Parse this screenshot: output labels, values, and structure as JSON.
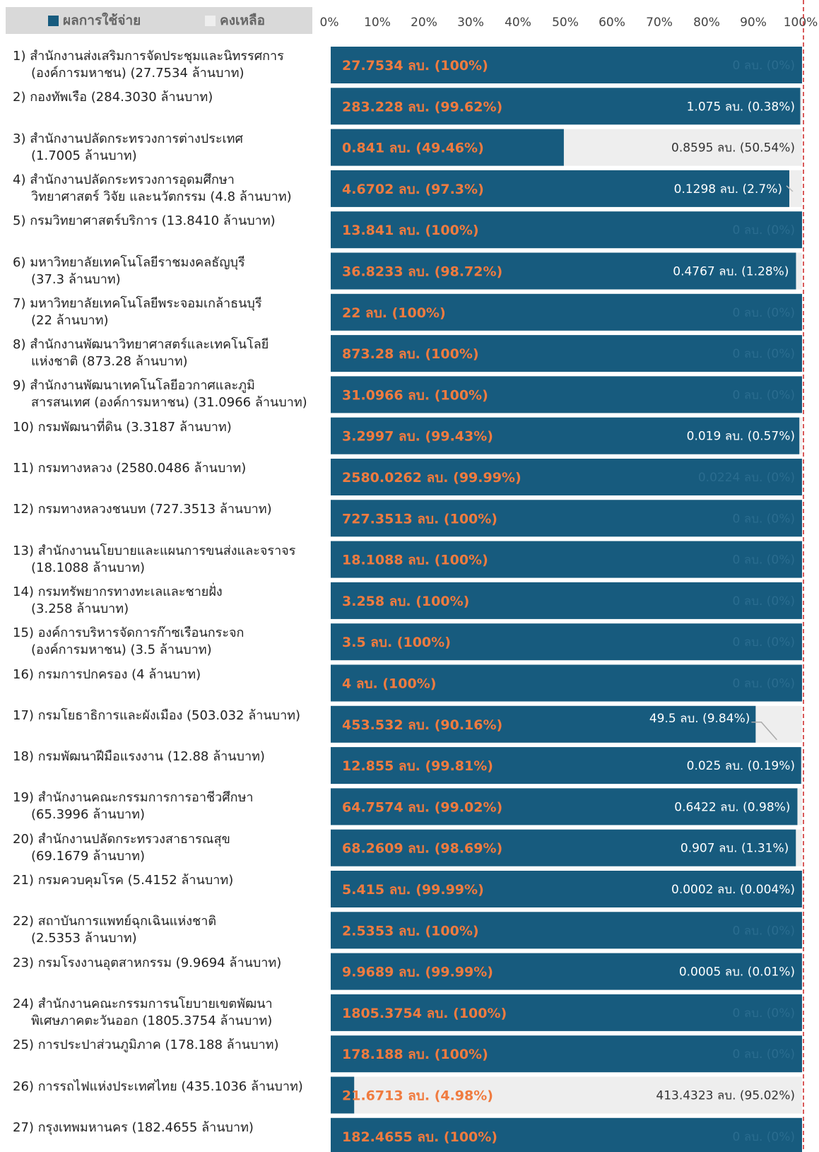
{
  "legend": {
    "spent_label": "ผลการใช้จ่าย",
    "remaining_label": "คงเหลือ",
    "position": "top-left"
  },
  "colors": {
    "spent": "#175b7e",
    "remaining": "#eeeeee",
    "spent_text": "#f07b3f",
    "remaining_text": "#333333",
    "zero_text": "#2a6c8f",
    "reference_line": "#cc2222",
    "legend_bg": "#d9d9d9"
  },
  "chart_data": {
    "type": "bar",
    "orientation": "horizontal",
    "stacked": true,
    "x_ticks": [
      "0%",
      "10%",
      "20%",
      "30%",
      "40%",
      "50%",
      "60%",
      "70%",
      "80%",
      "90%",
      "100%"
    ],
    "xlim": [
      0,
      100
    ],
    "grid": false,
    "reference_line_at": 100,
    "categories": [
      [
        "1) สำนักงานส่งเสริมการจัดประชุมและนิทรรศการ",
        "(องค์การมหาชน) (27.7534 ล้านบาท)"
      ],
      [
        "2) กองทัพเรือ (284.3030 ล้านบาท)"
      ],
      [
        "3) สำนักงานปลัดกระทรวงการต่างประเทศ",
        "(1.7005 ล้านบาท)"
      ],
      [
        "4) สำนักงานปลัดกระทรวงการอุดมศึกษา",
        "วิทยาศาสตร์ วิจัย และนวัตกรรม (4.8 ล้านบาท)"
      ],
      [
        "5) กรมวิทยาศาสตร์บริการ (13.8410 ล้านบาท)"
      ],
      [
        "6) มหาวิทยาลัยเทคโนโลยีราชมงคลธัญบุรี",
        "(37.3 ล้านบาท)"
      ],
      [
        "7) มหาวิทยาลัยเทคโนโลยีพระจอมเกล้าธนบุรี",
        "(22 ล้านบาท)"
      ],
      [
        "8) สำนักงานพัฒนาวิทยาศาสตร์และเทคโนโลยี",
        "แห่งชาติ (873.28 ล้านบาท)"
      ],
      [
        "9) สำนักงานพัฒนาเทคโนโลยีอวกาศและภูมิ",
        "สารสนเทศ (องค์การมหาชน) (31.0966 ล้านบาท)"
      ],
      [
        "10) กรมพัฒนาที่ดิน (3.3187 ล้านบาท)"
      ],
      [
        "11) กรมทางหลวง (2580.0486 ล้านบาท)"
      ],
      [
        "12) กรมทางหลวงชนบท (727.3513 ล้านบาท)"
      ],
      [
        "13) สำนักงานนโยบายและแผนการขนส่งและจราจร",
        "(18.1088 ล้านบาท)"
      ],
      [
        "14) กรมทรัพยากรทางทะเลและชายฝั่ง",
        "(3.258 ล้านบาท)"
      ],
      [
        "15) องค์การบริหารจัดการก๊าซเรือนกระจก",
        "(องค์การมหาชน) (3.5 ล้านบาท)"
      ],
      [
        "16) กรมการปกครอง (4 ล้านบาท)"
      ],
      [
        "17) กรมโยธาธิการและผังเมือง (503.032 ล้านบาท)"
      ],
      [
        "18) กรมพัฒนาฝีมือแรงงาน (12.88 ล้านบาท)"
      ],
      [
        "19) สำนักงานคณะกรรมการการอาชีวศึกษา",
        "(65.3996 ล้านบาท)"
      ],
      [
        "20) สำนักงานปลัดกระทรวงสาธารณสุข",
        "(69.1679 ล้านบาท)"
      ],
      [
        "21) กรมควบคุมโรค (5.4152 ล้านบาท)"
      ],
      [
        "22) สถาบันการแพทย์ฉุกเฉินแห่งชาติ",
        "(2.5353 ล้านบาท)"
      ],
      [
        "23) กรมโรงงานอุตสาหกรรม (9.9694 ล้านบาท)"
      ],
      [
        "24) สำนักงานคณะกรรมการนโยบายเขตพัฒนา",
        "พิเศษภาคตะวันออก (1805.3754 ล้านบาท)"
      ],
      [
        "25) การประปาส่วนภูมิภาค (178.188 ล้านบาท)"
      ],
      [
        "26) การรถไฟแห่งประเทศไทย (435.1036 ล้านบาท)"
      ],
      [
        "27) กรุงเทพมหานคร (182.4655 ล้านบาท)"
      ]
    ],
    "series": [
      {
        "name": "ผลการใช้จ่าย",
        "values": [
          100,
          99.62,
          49.46,
          97.3,
          100,
          98.72,
          100,
          100,
          100,
          99.43,
          99.99,
          100,
          100,
          100,
          100,
          100,
          90.16,
          99.81,
          99.02,
          98.69,
          99.99,
          100,
          99.99,
          100,
          100,
          4.98,
          100
        ],
        "labels": [
          "27.7534 ลบ. (100%)",
          "283.228 ลบ. (99.62%)",
          "0.841 ลบ. (49.46%)",
          "4.6702 ลบ. (97.3%)",
          "13.841 ลบ. (100%)",
          "36.8233 ลบ. (98.72%)",
          "22 ลบ. (100%)",
          "873.28 ลบ. (100%)",
          "31.0966 ลบ. (100%)",
          "3.2997 ลบ. (99.43%)",
          "2580.0262 ลบ. (99.99%)",
          "727.3513 ลบ. (100%)",
          "18.1088 ลบ. (100%)",
          "3.258 ลบ. (100%)",
          "3.5 ลบ. (100%)",
          "4 ลบ. (100%)",
          "453.532 ลบ. (90.16%)",
          "12.855 ลบ. (99.81%)",
          "64.7574 ลบ. (99.02%)",
          "68.2609 ลบ. (98.69%)",
          "5.415 ลบ. (99.99%)",
          "2.5353 ลบ. (100%)",
          "9.9689 ลบ. (99.99%)",
          "1805.3754 ลบ. (100%)",
          "178.188 ลบ. (100%)",
          "21.6713 ลบ. (4.98%)",
          "182.4655 ลบ. (100%)"
        ]
      },
      {
        "name": "คงเหลือ",
        "values": [
          0,
          0.38,
          50.54,
          2.7,
          0,
          1.28,
          0,
          0,
          0,
          0.57,
          0,
          0,
          0,
          0,
          0,
          0,
          9.84,
          0.19,
          0.98,
          1.31,
          0.004,
          0,
          0.01,
          0,
          0,
          95.02,
          0
        ],
        "labels": [
          "0 ลบ. (0%)",
          "1.075 ลบ. (0.38%)",
          "0.8595 ลบ. (50.54%)",
          "0.1298 ลบ. (2.7%)",
          "0 ลบ. (0%)",
          "0.4767 ลบ. (1.28%)",
          "0 ลบ. (0%)",
          "0 ลบ. (0%)",
          "0 ลบ. (0%)",
          "0.019 ลบ. (0.57%)",
          "0.0224 ลบ. (0%)",
          "0 ลบ. (0%)",
          "0 ลบ. (0%)",
          "0 ลบ. (0%)",
          "0 ลบ. (0%)",
          "0 ลบ. (0%)",
          "49.5 ลบ. (9.84%)",
          "0.025 ลบ. (0.19%)",
          "0.6422 ลบ. (0.98%)",
          "0.907 ลบ. (1.31%)",
          "0.0002 ลบ. (0.004%)",
          "0 ลบ. (0%)",
          "0.0005 ลบ. (0.01%)",
          "0 ลบ. (0%)",
          "0 ลบ. (0%)",
          "413.4323 ลบ. (95.02%)",
          "0 ลบ. (0%)"
        ]
      }
    ]
  }
}
